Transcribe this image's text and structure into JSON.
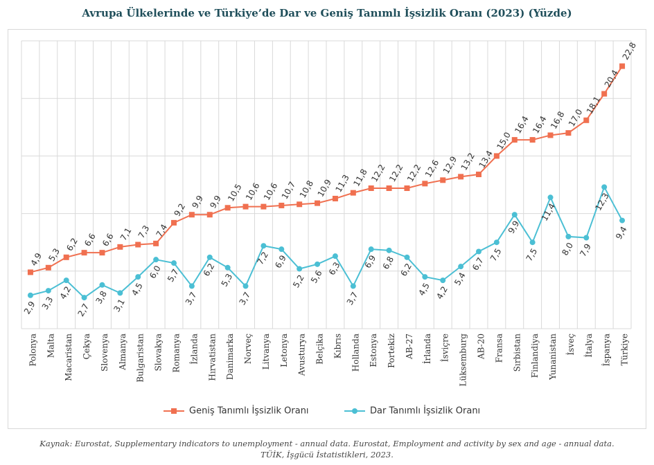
{
  "chart_data": {
    "type": "line",
    "title": "Avrupa Ülkelerinde ve Türkiye’de Dar ve Geniş Tanımlı İşsizlik Oranı (2023) (Yüzde)",
    "xlabel": "",
    "ylabel": "",
    "ylim": [
      0,
      25
    ],
    "grid": true,
    "legend_position": "bottom",
    "categories": [
      "Polonya",
      "Malta",
      "Macaristan",
      "Çekya",
      "Slovenya",
      "Almanya",
      "Bulgaristan",
      "Slovakya",
      "Romanya",
      "İzlanda",
      "Hırvatistan",
      "Danimarka",
      "Norveç",
      "Litvanya",
      "Letonya",
      "Avusturya",
      "Belçika",
      "Kıbrıs",
      "Hollanda",
      "Estonya",
      "Portekiz",
      "AB-27",
      "İrlanda",
      "İsviçre",
      "Lüksemburg",
      "AB-20",
      "Fransa",
      "Sırbistan",
      "Finlandiya",
      "Yunanistan",
      "İsveç",
      "İtalya",
      "İspanya",
      "Türkiye"
    ],
    "series": [
      {
        "name": "Geniş Tanımlı İşsizlik Oranı",
        "color": "#f07050",
        "marker": "square",
        "values": [
          4.9,
          5.3,
          6.2,
          6.6,
          6.6,
          7.1,
          7.3,
          7.4,
          9.2,
          9.9,
          9.9,
          10.5,
          10.6,
          10.6,
          10.7,
          10.8,
          10.9,
          11.3,
          11.8,
          12.2,
          12.2,
          12.2,
          12.6,
          12.9,
          13.2,
          13.4,
          15.0,
          16.4,
          16.4,
          16.8,
          17.0,
          18.1,
          20.4,
          22.8
        ],
        "labels": [
          "4,9",
          "5,3",
          "6,2",
          "6,6",
          "6,6",
          "7,1",
          "7,3",
          "7,4",
          "9,2",
          "9,9",
          "9,9",
          "10,5",
          "10,6",
          "10,6",
          "10,7",
          "10,8",
          "10,9",
          "11,3",
          "11,8",
          "12,2",
          "12,2",
          "12,2",
          "12,6",
          "12,9",
          "13,2",
          "13,4",
          "15,0",
          "16,4",
          "16,4",
          "16,8",
          "17,0",
          "18,1",
          "20,4",
          "22,8"
        ]
      },
      {
        "name": "Dar Tanımlı İşsizlik Oranı",
        "color": "#4bbfd4",
        "marker": "circle",
        "values": [
          2.9,
          3.3,
          4.2,
          2.7,
          3.8,
          3.1,
          4.5,
          6.0,
          5.7,
          3.7,
          6.2,
          5.3,
          3.7,
          7.2,
          6.9,
          5.2,
          5.6,
          6.3,
          3.7,
          6.9,
          6.8,
          6.2,
          4.5,
          4.2,
          5.4,
          6.7,
          7.5,
          9.9,
          7.5,
          11.4,
          8.0,
          7.9,
          12.3,
          9.4
        ],
        "labels": [
          "2,9",
          "3,3",
          "4,2",
          "2,7",
          "3,8",
          "3,1",
          "4,5",
          "6,0",
          "5,7",
          "3,7",
          "6,2",
          "5,3",
          "3,7",
          "7,2",
          "6,9",
          "5,2",
          "5,6",
          "6,3",
          "3,7",
          "6,9",
          "6,8",
          "6,2",
          "4,5",
          "4,2",
          "5,4",
          "6,7",
          "7,5",
          "9,9",
          "7,5",
          "11,4",
          "8,0",
          "7,9",
          "12,3",
          "9,4"
        ]
      }
    ]
  },
  "source_note": {
    "line1": "Kaynak: Eurostat, Supplementary indicators to unemployment - annual data. Eurostat, Employment and activity by sex and age - annual data.",
    "line2": "TÜİK, İşgücü İstatistikleri, 2023."
  }
}
